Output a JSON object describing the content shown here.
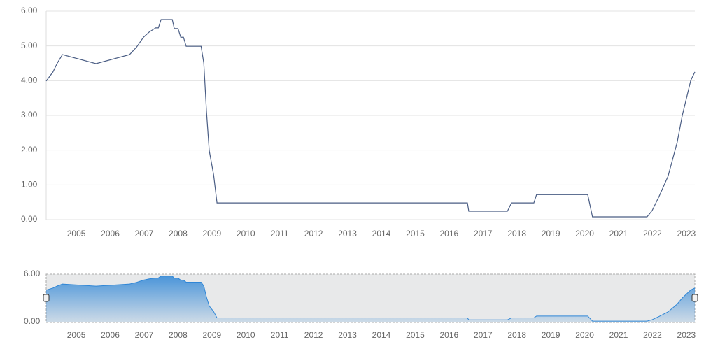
{
  "chart_data": {
    "type": "line",
    "x": [
      2004.11,
      2004.31,
      2004.44,
      2004.59,
      2005.58,
      2006.57,
      2006.78,
      2006.98,
      2007.15,
      2007.34,
      2007.42,
      2007.5,
      2007.83,
      2007.89,
      2008.0,
      2008.08,
      2008.16,
      2008.24,
      2008.68,
      2008.76,
      2008.84,
      2008.92,
      2009.05,
      2009.15,
      2016.54,
      2016.58,
      2017.72,
      2017.84,
      2018.5,
      2018.58,
      2020.09,
      2020.23,
      2021.84,
      2021.99,
      2022.2,
      2022.46,
      2022.73,
      2022.88,
      2023.13,
      2023.25
    ],
    "values": [
      3.99,
      4.25,
      4.51,
      4.75,
      4.49,
      4.75,
      4.97,
      5.25,
      5.4,
      5.52,
      5.52,
      5.76,
      5.76,
      5.5,
      5.5,
      5.25,
      5.25,
      4.99,
      4.99,
      4.51,
      3.1,
      1.99,
      1.29,
      0.48,
      0.48,
      0.24,
      0.24,
      0.48,
      0.48,
      0.72,
      0.72,
      0.08,
      0.08,
      0.26,
      0.68,
      1.25,
      2.23,
      3.0,
      4.01,
      4.25
    ],
    "color": "#4a5d84",
    "xlim": [
      2004.11,
      2023.25
    ],
    "xticks": [
      2005,
      2006,
      2007,
      2008,
      2009,
      2010,
      2011,
      2012,
      2013,
      2014,
      2015,
      2016,
      2017,
      2018,
      2019,
      2020,
      2021,
      2022,
      2023
    ],
    "ylim": [
      0,
      6
    ],
    "yticks": [
      {
        "value": 0,
        "label": "0.00"
      },
      {
        "value": 1,
        "label": "1.00"
      },
      {
        "value": 2,
        "label": "2.00"
      },
      {
        "value": 3,
        "label": "3.00"
      },
      {
        "value": 4,
        "label": "4.00"
      },
      {
        "value": 5,
        "label": "5.00"
      },
      {
        "value": 6,
        "label": "6.00"
      }
    ],
    "grid": true,
    "navigator": {
      "color": "#2f86d6",
      "ylim": [
        0,
        6
      ],
      "yticks": [
        {
          "value": 0,
          "label": "0.00"
        },
        {
          "value": 6,
          "label": "6.00"
        }
      ]
    }
  }
}
